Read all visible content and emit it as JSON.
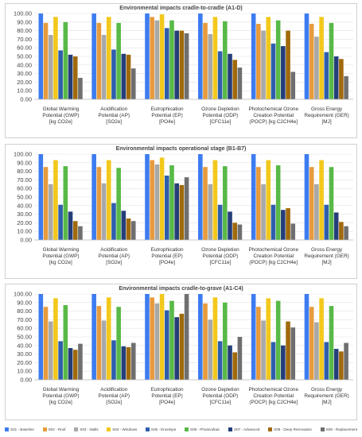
{
  "series_meta": [
    {
      "name": "S01 - Baseline",
      "color": "#3d7cf0"
    },
    {
      "name": "S02 - Roof",
      "color": "#e79b3c"
    },
    {
      "name": "S03 - Walls",
      "color": "#a8a8a8"
    },
    {
      "name": "S04 - Windows",
      "color": "#f2c81c"
    },
    {
      "name": "S05 - Envelope",
      "color": "#2f5eab"
    },
    {
      "name": "S06 - Photovoltaic",
      "color": "#58b947"
    },
    {
      "name": "S07 - Advanced",
      "color": "#253e7a"
    },
    {
      "name": "S08 - Deep Renovation",
      "color": "#a06a0c"
    },
    {
      "name": "S09 - Replacement",
      "color": "#6f6f6f"
    }
  ],
  "chart_data": [
    {
      "type": "bar",
      "title": "Environmental impacts cradle-to-cradle (A1-D)",
      "ylim": [
        0,
        100
      ],
      "yticks": [
        "0.00",
        "10.00",
        "20.00",
        "30.00",
        "40.00",
        "50.00",
        "60.00",
        "70.00",
        "80.00",
        "90.00",
        "100.00"
      ],
      "categories": [
        [
          "Global Warming",
          "Potential (GWP)",
          "[kg CO2e]"
        ],
        [
          "Acidification",
          "Potential (AP)",
          "[SO2e]"
        ],
        [
          "Eutrophication",
          "Potential (EP)",
          "[PO4e]"
        ],
        [
          "Ozone Depletion",
          "Potential (ODP)",
          "[CFC11e]"
        ],
        [
          "Photochemical Ozone",
          "Creation Potential",
          "(POCP) [kg C2CH4e]"
        ],
        [
          "Gross Energy",
          "Requirement (GER)",
          "[MJ]"
        ]
      ],
      "series": [
        {
          "name": "S01 - Baseline",
          "values": [
            100,
            100,
            100,
            100,
            100,
            100
          ]
        },
        {
          "name": "S02 - Roof",
          "values": [
            89,
            89,
            96,
            89,
            88,
            88
          ]
        },
        {
          "name": "S03 - Walls",
          "values": [
            75,
            75,
            92,
            76,
            80,
            73
          ]
        },
        {
          "name": "S04 - Windows",
          "values": [
            96,
            96,
            99,
            96,
            96,
            96
          ]
        },
        {
          "name": "S05 - Envelope",
          "values": [
            57,
            58,
            83,
            56,
            65,
            55
          ]
        },
        {
          "name": "S06 - Photovoltaic",
          "values": [
            90,
            89,
            92,
            91,
            92,
            89
          ]
        },
        {
          "name": "S07 - Advanced",
          "values": [
            52,
            53,
            80,
            53,
            62,
            50
          ]
        },
        {
          "name": "S08 - Deep Renovation",
          "values": [
            50,
            52,
            80,
            46,
            80,
            47
          ]
        },
        {
          "name": "S09 - Replacement",
          "values": [
            25,
            36,
            77,
            37,
            32,
            27
          ]
        }
      ]
    },
    {
      "type": "bar",
      "title": "Environmental impacts operational stage (B1-B7)",
      "ylim": [
        0,
        100
      ],
      "yticks": [
        "0.00",
        "10.00",
        "20.00",
        "30.00",
        "40.00",
        "50.00",
        "60.00",
        "70.00",
        "80.00",
        "90.00",
        "100.00"
      ],
      "categories": [
        [
          "Global Warming",
          "Potential (GWP)",
          "[kg CO2e]"
        ],
        [
          "Acidification",
          "Potential (AP)",
          "[SO2e]"
        ],
        [
          "Eutrophication",
          "Potential (EP)",
          "[PO4e]"
        ],
        [
          "Ozone Depletion",
          "Potential (ODP)",
          "[CFC11e]"
        ],
        [
          "Photochemical Ozone",
          "Creation Potential",
          "(POCP) [kg C2CH4e]"
        ],
        [
          "Gross Energy",
          "Requirement (GER)",
          "[MJ]"
        ]
      ],
      "series": [
        {
          "name": "S01 - Baseline",
          "values": [
            100,
            100,
            100,
            100,
            100,
            100
          ]
        },
        {
          "name": "S02 - Roof",
          "values": [
            85,
            85,
            93,
            85,
            85,
            85
          ]
        },
        {
          "name": "S03 - Walls",
          "values": [
            65,
            66,
            88,
            65,
            65,
            65
          ]
        },
        {
          "name": "S04 - Windows",
          "values": [
            93,
            93,
            96,
            93,
            93,
            93
          ]
        },
        {
          "name": "S05 - Envelope",
          "values": [
            41,
            43,
            75,
            41,
            41,
            41
          ]
        },
        {
          "name": "S06 - Photovoltaic",
          "values": [
            86,
            84,
            87,
            86,
            87,
            85
          ]
        },
        {
          "name": "S07 - Advanced",
          "values": [
            33,
            34,
            66,
            33,
            35,
            32
          ]
        },
        {
          "name": "S08 - Deep Renovation",
          "values": [
            22,
            25,
            64,
            20,
            37,
            21
          ]
        },
        {
          "name": "S09 - Replacement",
          "values": [
            16,
            22,
            73,
            18,
            19,
            16
          ]
        }
      ]
    },
    {
      "type": "bar",
      "title": "Environmental impacts cradle-to-grave (A1-C4)",
      "ylim": [
        0,
        100
      ],
      "yticks": [
        "0.00",
        "10.00",
        "20.00",
        "30.00",
        "40.00",
        "50.00",
        "60.00",
        "70.00",
        "80.00",
        "90.00",
        "100.00"
      ],
      "categories": [
        [
          "Global Warming",
          "Potential (GWP)",
          "[kg CO2e]"
        ],
        [
          "Acidification",
          "Potential (AP)",
          "[SO2e]"
        ],
        [
          "Eutrophication",
          "Potential (EP)",
          "[PO4e]"
        ],
        [
          "Ozone Depletion",
          "Potential (ODP)",
          "[CFC11e]"
        ],
        [
          "Photochemical Ozone",
          "Creation Potential",
          "(POCP) [kg C2CH4e]"
        ],
        [
          "Gross Energy",
          "Requirement (GER)",
          "[MJ]"
        ]
      ],
      "series": [
        {
          "name": "S01 - Baseline",
          "values": [
            100,
            100,
            100,
            100,
            100,
            100
          ]
        },
        {
          "name": "S02 - Roof",
          "values": [
            85,
            86,
            96,
            89,
            85,
            85
          ]
        },
        {
          "name": "S03 - Walls",
          "values": [
            68,
            69,
            89,
            70,
            69,
            67
          ]
        },
        {
          "name": "S04 - Windows",
          "values": [
            95,
            96,
            100,
            96,
            95,
            95
          ]
        },
        {
          "name": "S05 - Envelope",
          "values": [
            45,
            46,
            81,
            45,
            44,
            44
          ]
        },
        {
          "name": "S06 - Photovoltaic",
          "values": [
            87,
            85,
            92,
            90,
            92,
            86
          ]
        },
        {
          "name": "S07 - Advanced",
          "values": [
            37,
            39,
            73,
            40,
            40,
            36
          ]
        },
        {
          "name": "S08 - Deep Renovation",
          "values": [
            35,
            38,
            77,
            32,
            68,
            33
          ]
        },
        {
          "name": "S09 - Replacement",
          "values": [
            42,
            43,
            100,
            50,
            61,
            43
          ]
        }
      ]
    }
  ]
}
